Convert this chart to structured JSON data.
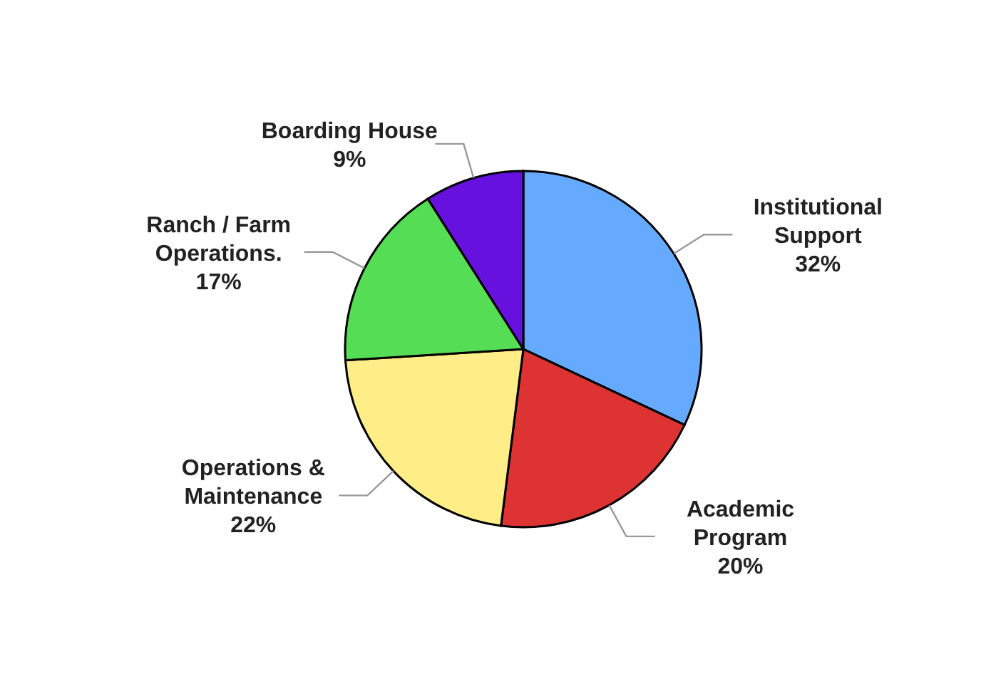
{
  "chart_data": {
    "type": "pie",
    "categories": [
      "Institutional Support",
      "Academic Program",
      "Operations & Maintenance",
      "Ranch / Farm Operations.",
      "Boarding House"
    ],
    "values": [
      32,
      20,
      22,
      17,
      9
    ],
    "colors": [
      "#66aaff",
      "#dd3333",
      "#ffee88",
      "#55dd55",
      "#6611dd"
    ],
    "value_labels": [
      "32%",
      "20%",
      "22%",
      "17%",
      "9%"
    ]
  }
}
